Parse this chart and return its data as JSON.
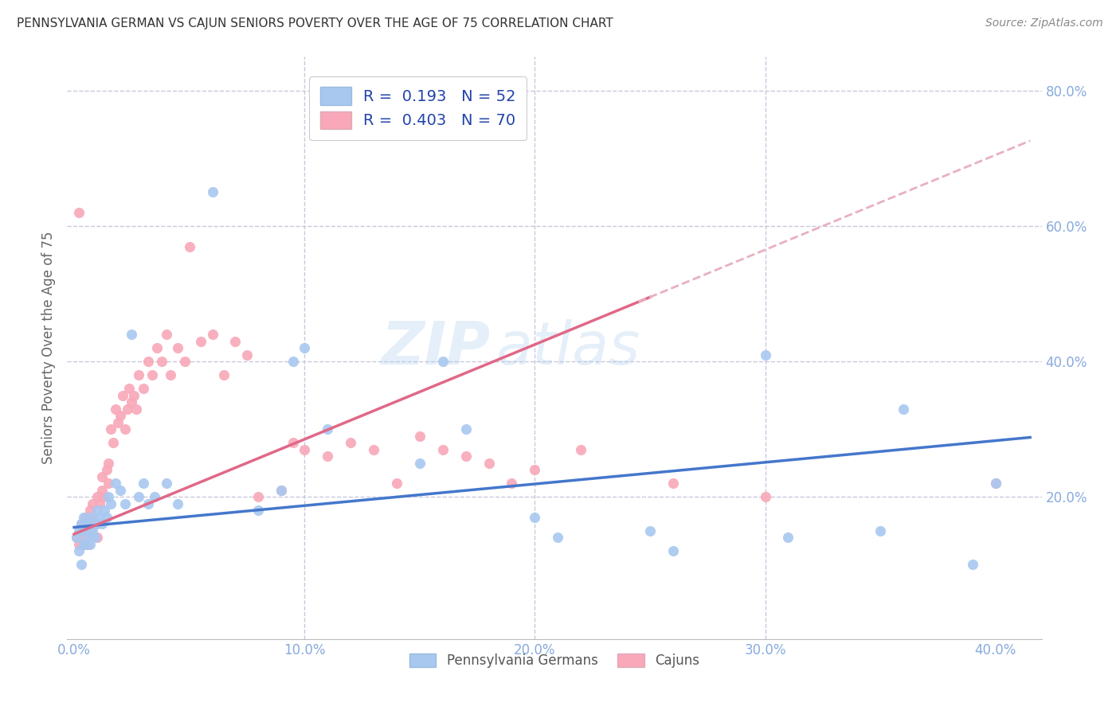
{
  "title": "PENNSYLVANIA GERMAN VS CAJUN SENIORS POVERTY OVER THE AGE OF 75 CORRELATION CHART",
  "source": "Source: ZipAtlas.com",
  "ylabel": "Seniors Poverty Over the Age of 75",
  "xlabel_ticks": [
    "0.0%",
    "10.0%",
    "20.0%",
    "30.0%",
    "40.0%"
  ],
  "xlabel_vals": [
    0.0,
    0.1,
    0.2,
    0.3,
    0.4
  ],
  "ylim": [
    -0.01,
    0.85
  ],
  "xlim": [
    -0.003,
    0.42
  ],
  "legend_label1": "R =  0.193   N = 52",
  "legend_label2": "R =  0.403   N = 70",
  "watermark_zip": "ZIP",
  "watermark_atlas": "atlas",
  "pa_color": "#A8C8F0",
  "cajun_color": "#F8A8B8",
  "pa_line_color": "#4477CC",
  "cajun_line_color": "#E06888",
  "cajun_dashed_color": "#E8B0C0",
  "bg_color": "#FFFFFF",
  "grid_color": "#C8C8DC",
  "title_color": "#333333",
  "source_color": "#888888",
  "axis_color": "#88AADD",
  "pa_german_x": [
    0.001,
    0.002,
    0.002,
    0.003,
    0.003,
    0.004,
    0.004,
    0.005,
    0.005,
    0.006,
    0.006,
    0.007,
    0.007,
    0.008,
    0.009,
    0.01,
    0.01,
    0.011,
    0.012,
    0.013,
    0.014,
    0.015,
    0.016,
    0.018,
    0.02,
    0.022,
    0.025,
    0.028,
    0.03,
    0.032,
    0.035,
    0.04,
    0.045,
    0.06,
    0.08,
    0.09,
    0.095,
    0.1,
    0.11,
    0.15,
    0.16,
    0.17,
    0.2,
    0.21,
    0.25,
    0.26,
    0.3,
    0.31,
    0.35,
    0.36,
    0.39,
    0.4
  ],
  "pa_german_y": [
    0.14,
    0.12,
    0.15,
    0.1,
    0.16,
    0.13,
    0.17,
    0.15,
    0.13,
    0.16,
    0.14,
    0.17,
    0.13,
    0.15,
    0.14,
    0.16,
    0.18,
    0.17,
    0.16,
    0.18,
    0.17,
    0.2,
    0.19,
    0.22,
    0.21,
    0.19,
    0.44,
    0.2,
    0.22,
    0.19,
    0.2,
    0.22,
    0.19,
    0.65,
    0.18,
    0.21,
    0.4,
    0.42,
    0.3,
    0.25,
    0.4,
    0.3,
    0.17,
    0.14,
    0.15,
    0.12,
    0.41,
    0.14,
    0.15,
    0.33,
    0.1,
    0.22
  ],
  "cajun_x": [
    0.001,
    0.002,
    0.002,
    0.003,
    0.003,
    0.004,
    0.005,
    0.005,
    0.006,
    0.006,
    0.007,
    0.007,
    0.008,
    0.008,
    0.009,
    0.01,
    0.01,
    0.011,
    0.012,
    0.012,
    0.013,
    0.014,
    0.015,
    0.015,
    0.016,
    0.017,
    0.018,
    0.019,
    0.02,
    0.021,
    0.022,
    0.023,
    0.024,
    0.025,
    0.026,
    0.027,
    0.028,
    0.03,
    0.032,
    0.034,
    0.036,
    0.038,
    0.04,
    0.042,
    0.045,
    0.048,
    0.05,
    0.055,
    0.06,
    0.065,
    0.07,
    0.075,
    0.08,
    0.09,
    0.095,
    0.1,
    0.11,
    0.12,
    0.13,
    0.14,
    0.15,
    0.16,
    0.17,
    0.18,
    0.19,
    0.2,
    0.22,
    0.26,
    0.3,
    0.4
  ],
  "cajun_y": [
    0.14,
    0.13,
    0.62,
    0.15,
    0.16,
    0.13,
    0.14,
    0.17,
    0.13,
    0.16,
    0.18,
    0.15,
    0.19,
    0.17,
    0.16,
    0.14,
    0.2,
    0.19,
    0.21,
    0.23,
    0.2,
    0.24,
    0.22,
    0.25,
    0.3,
    0.28,
    0.33,
    0.31,
    0.32,
    0.35,
    0.3,
    0.33,
    0.36,
    0.34,
    0.35,
    0.33,
    0.38,
    0.36,
    0.4,
    0.38,
    0.42,
    0.4,
    0.44,
    0.38,
    0.42,
    0.4,
    0.57,
    0.43,
    0.44,
    0.38,
    0.43,
    0.41,
    0.2,
    0.21,
    0.28,
    0.27,
    0.26,
    0.28,
    0.27,
    0.22,
    0.29,
    0.27,
    0.26,
    0.25,
    0.22,
    0.24,
    0.27,
    0.22,
    0.2,
    0.22
  ]
}
